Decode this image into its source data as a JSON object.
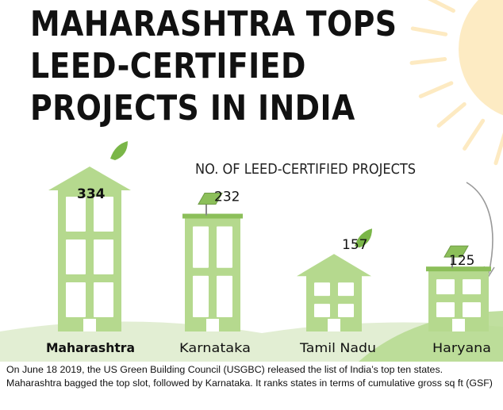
{
  "title_lines": [
    "MAHARASHTRA TOPS",
    "LEED-CERTIFIED",
    "PROJECTS IN INDIA"
  ],
  "subtitle": "NO. OF LEED-CERTIFIED PROJECTS",
  "caption": "On June 18  2019,  the US Green Building Council (USGBC) released the list of India’s top ten states.  Maharashtra bagged the top slot, followed by Karnataka.  It ranks states in terms of cumulative gross sq ft (GSF)",
  "colors": {
    "building": "#b5d98e",
    "building_dark": "#8cbf5a",
    "window": "#ffffff",
    "ground": "#e2eed3",
    "sun": "#fde6b4",
    "leaf": "#7ab648",
    "text": "#111111"
  },
  "chart_data": {
    "type": "bar",
    "title": "MAHARASHTRA TOPS LEED-CERTIFIED PROJECTS IN INDIA",
    "subtitle": "NO. OF LEED-CERTIFIED PROJECTS",
    "categories": [
      "Maharashtra",
      "Karnataka",
      "Tamil Nadu",
      "Haryana"
    ],
    "values": [
      334,
      232,
      157,
      125
    ],
    "roofs": [
      "leaf",
      "solar",
      "leaf",
      "solar"
    ],
    "highlight": "Maharashtra",
    "grid": false,
    "legend": "none"
  }
}
